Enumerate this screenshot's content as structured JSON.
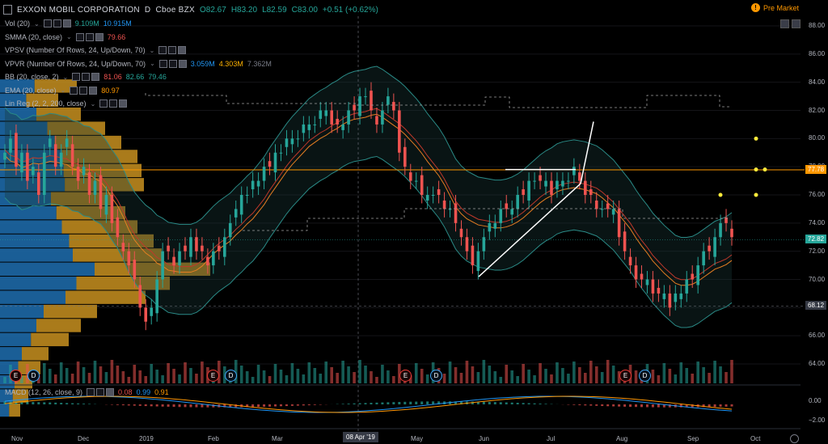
{
  "header": {
    "symbol_title": "EXXON MOBIL CORPORATION",
    "interval": "D",
    "exchange": "Cboe BZX",
    "open": "O82.67",
    "high": "H83.20",
    "low": "L82.59",
    "close": "C83.00",
    "change": "+0.51 (+0.62%)"
  },
  "premarket_label": "Pre Market",
  "premarket_icon": "alert-icon",
  "indicators": [
    {
      "label": "Vol (20)",
      "values": [
        "9.109M",
        "10.915M"
      ],
      "colors": [
        "#26a69a",
        "#2196f3"
      ]
    },
    {
      "label": "SMMA (20, close)",
      "values": [
        "79.66"
      ],
      "colors": [
        "#ef5350"
      ]
    },
    {
      "label": "VPSV (Number Of Rows, 24, Up/Down, 70)",
      "values": [],
      "colors": []
    },
    {
      "label": "VPVR (Number Of Rows, 24, Up/Down, 70)",
      "values": [
        "3.059M",
        "4.303M",
        "7.362M"
      ],
      "colors": [
        "#2196f3",
        "#ffb300",
        "#787b86"
      ]
    },
    {
      "label": "BB (20, close, 2)",
      "values": [
        "81.06",
        "82.66",
        "79.46"
      ],
      "colors": [
        "#ef5350",
        "#26a69a",
        "#26a69a"
      ]
    },
    {
      "label": "EMA (20, close)",
      "values": [
        "80.97"
      ],
      "colors": [
        "#ff9800"
      ]
    },
    {
      "label": "Lin Reg (2, 2, 200, close)",
      "values": [],
      "colors": []
    }
  ],
  "price_axis": {
    "ticks": [
      "88.00",
      "86.00",
      "84.00",
      "82.00",
      "80.00",
      "78.00",
      "76.00",
      "74.00",
      "72.00",
      "70.00",
      "68.00",
      "66.00",
      "64.00"
    ],
    "tags": [
      {
        "text": "77.78",
        "color": "#ff9800"
      },
      {
        "text": "72.82",
        "color": "#26a69a"
      },
      {
        "text": "68.12",
        "color": "#363a45"
      }
    ]
  },
  "macd": {
    "label": "MACD (12, 26, close, 9)",
    "values": [
      "0.08",
      "0.99",
      "0.91"
    ],
    "colors": [
      "#ef5350",
      "#2196f3",
      "#ff9800"
    ],
    "ticks": [
      "0.00",
      "−2.00"
    ]
  },
  "time_axis": {
    "labels": [
      "Nov",
      "Dec",
      "2019",
      "Feb",
      "Mar",
      "May",
      "Jun",
      "Jul",
      "Aug",
      "Sep",
      "Oct"
    ],
    "crosshair_date": "08 Apr '19"
  },
  "events": [
    "E",
    "D",
    "E",
    "D",
    "E",
    "D",
    "E",
    "D"
  ],
  "chart_data": {
    "type": "candlestick",
    "title": "EXXON MOBIL CORPORATION, D, Cboe BZX",
    "ylim": [
      63,
      89
    ],
    "closes": [
      79,
      80,
      78,
      79,
      77,
      78,
      76,
      79,
      80,
      78,
      79,
      80,
      78,
      77,
      78,
      76,
      77,
      75,
      76,
      74,
      73,
      72,
      71,
      70,
      68,
      67,
      68,
      70,
      72,
      72,
      71,
      72,
      72,
      73,
      72,
      72,
      71,
      72,
      72,
      73,
      74,
      75,
      76,
      76,
      77,
      77,
      78,
      78,
      79,
      79,
      80,
      80,
      80,
      81,
      81,
      81,
      82,
      82,
      81,
      81,
      81,
      82,
      82,
      83,
      83,
      82,
      81,
      82,
      83,
      82,
      79,
      78,
      77,
      77,
      76,
      76,
      76,
      76,
      75,
      75,
      74,
      73,
      72,
      71,
      72,
      73,
      74,
      74,
      75,
      75,
      75,
      76,
      76,
      77,
      77,
      77,
      77,
      76,
      77,
      77,
      77,
      78,
      77,
      76,
      76,
      75,
      75,
      75,
      75,
      73,
      72,
      71,
      70,
      70,
      70,
      69,
      69,
      69,
      68,
      69,
      69,
      70,
      70,
      71,
      72,
      72,
      73,
      74,
      74,
      73
    ]
  }
}
